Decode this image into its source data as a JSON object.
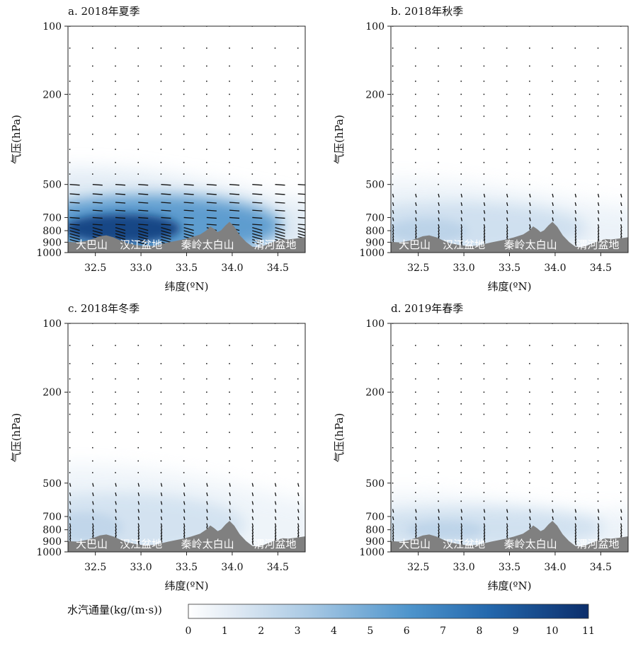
{
  "chart_data": [
    {
      "type": "heatmap",
      "title": "a. 2018年夏季",
      "xlabel": "纬度(ºN)",
      "ylabel": "气压(hPa)",
      "xlim": [
        32.2,
        34.8
      ],
      "ylim": [
        1000,
        100
      ],
      "yscale": "log",
      "x_ticks": [
        "32.5",
        "33.0",
        "33.5",
        "34.0",
        "34.5"
      ],
      "y_ticks": [
        "100",
        "200",
        "500",
        "700",
        "800",
        "900",
        "1000"
      ],
      "terrain_labels": [
        "大巴山",
        "汉江盆地",
        "秦岭太白山",
        "渭河盆地"
      ],
      "moisture_flux_layer": {
        "peak_pressure_hPa": 760,
        "top_pressure_hPa": 430,
        "peak_value": 9.5,
        "peak_latitude": 32.8
      },
      "vectors": "strong southerly/northward flux between 500 and 900 hPa"
    },
    {
      "type": "heatmap",
      "title": "b. 2018年秋季",
      "xlabel": "纬度(ºN)",
      "ylabel": "气压(hPa)",
      "xlim": [
        32.2,
        34.8
      ],
      "ylim": [
        1000,
        100
      ],
      "yscale": "log",
      "x_ticks": [
        "32.5",
        "33.0",
        "33.5",
        "34.0",
        "34.5"
      ],
      "y_ticks": [
        "100",
        "200",
        "500",
        "700",
        "800",
        "900",
        "1000"
      ],
      "terrain_labels": [
        "大巴山",
        "汉江盆地",
        "秦岭太白山",
        "渭河盆地"
      ],
      "moisture_flux_layer": {
        "peak_pressure_hPa": 780,
        "top_pressure_hPa": 480,
        "peak_value": 2.5,
        "peak_latitude": 32.6
      },
      "vectors": "weak downward/southward flux below 700 hPa"
    },
    {
      "type": "heatmap",
      "title": "c. 2018年冬季",
      "xlabel": "纬度(ºN)",
      "ylabel": "气压(hPa)",
      "xlim": [
        32.2,
        34.8
      ],
      "ylim": [
        1000,
        100
      ],
      "yscale": "log",
      "x_ticks": [
        "32.5",
        "33.0",
        "33.5",
        "34.0",
        "34.5"
      ],
      "y_ticks": [
        "100",
        "200",
        "500",
        "700",
        "800",
        "900",
        "1000"
      ],
      "terrain_labels": [
        "大巴山",
        "汉江盆地",
        "秦岭太白山",
        "渭河盆地"
      ],
      "moisture_flux_layer": {
        "peak_pressure_hPa": 760,
        "top_pressure_hPa": 420,
        "peak_value": 1.2,
        "peak_latitude": 32.4
      },
      "vectors": "weak flux below 600 hPa"
    },
    {
      "type": "heatmap",
      "title": "d. 2019年春季",
      "xlabel": "纬度(ºN)",
      "ylabel": "气压(hPa)",
      "xlim": [
        32.2,
        34.8
      ],
      "ylim": [
        1000,
        100
      ],
      "yscale": "log",
      "x_ticks": [
        "32.5",
        "33.0",
        "33.5",
        "34.0",
        "34.5"
      ],
      "y_ticks": [
        "100",
        "200",
        "500",
        "700",
        "800",
        "900",
        "1000"
      ],
      "terrain_labels": [
        "大巴山",
        "汉江盆地",
        "秦岭太白山",
        "渭河盆地"
      ],
      "moisture_flux_layer": {
        "peak_pressure_hPa": 780,
        "top_pressure_hPa": 560,
        "peak_value": 2.0,
        "peak_latitude": 32.8
      },
      "vectors": "weak flux below 650 hPa"
    }
  ],
  "terrain_profile": {
    "latitude": [
      32.2,
      32.3,
      32.4,
      32.45,
      32.5,
      32.55,
      32.62,
      32.7,
      32.78,
      32.85,
      32.95,
      33.05,
      33.15,
      33.3,
      33.45,
      33.55,
      33.65,
      33.72,
      33.76,
      33.8,
      33.84,
      33.88,
      33.93,
      33.97,
      34.02,
      34.08,
      34.15,
      34.22,
      34.28,
      34.35,
      34.45,
      34.55,
      34.62,
      34.7,
      34.8
    ],
    "pressure_hPa": [
      900,
      905,
      890,
      878,
      865,
      850,
      842,
      860,
      890,
      912,
      930,
      940,
      935,
      905,
      880,
      860,
      835,
      800,
      770,
      790,
      815,
      800,
      760,
      735,
      770,
      840,
      900,
      945,
      950,
      935,
      900,
      875,
      878,
      870,
      858
    ]
  },
  "colorbar": {
    "label": "水汽通量(kg/(m·s))",
    "ticks": [
      "0",
      "1",
      "2",
      "3",
      "4",
      "5",
      "6",
      "7",
      "8",
      "9",
      "10",
      "11"
    ],
    "range": [
      0,
      11
    ],
    "colors": [
      "#ffffff",
      "#c8dced",
      "#2a77bb",
      "#0b2e6b"
    ]
  },
  "terrain_color": "#808080"
}
